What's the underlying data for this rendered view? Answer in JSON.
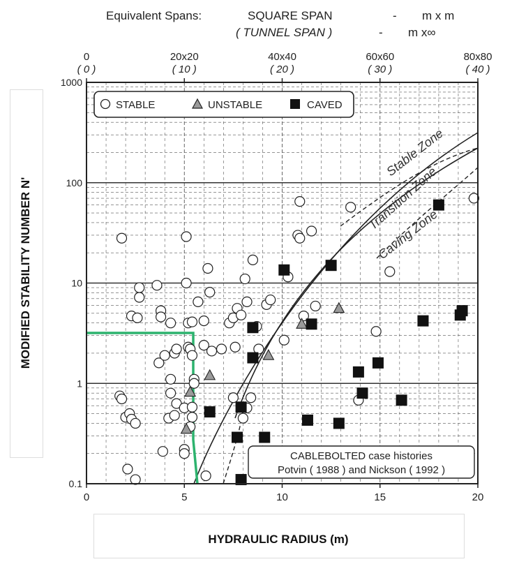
{
  "chart_data": {
    "type": "scatter",
    "title": "",
    "xlabel": "HYDRAULIC RADIUS (m)",
    "ylabel": "MODIFIED STABILITY NUMBER N'",
    "xlim": [
      0,
      20
    ],
    "ylim": [
      0.1,
      1000
    ],
    "yscale": "log",
    "x_ticks": [
      "0",
      "5",
      "10",
      "15",
      "20"
    ],
    "y_ticks": [
      "0.1",
      "1",
      "10",
      "100",
      "1000"
    ],
    "grid": true,
    "legend_position": "top-left",
    "top_axis": {
      "title_prefix": "Equivalent Spans:",
      "title_square": "SQUARE SPAN",
      "title_square_unit": "m x m",
      "title_tunnel": "( TUNNEL SPAN )",
      "title_tunnel_unit": "m x∞",
      "dash": "-",
      "ticks": [
        {
          "x": 0,
          "square": "0",
          "tunnel": "( 0 )"
        },
        {
          "x": 5,
          "square": "20x20",
          "tunnel": "( 10 )"
        },
        {
          "x": 10,
          "square": "40x40",
          "tunnel": "( 20 )"
        },
        {
          "x": 15,
          "square": "60x60",
          "tunnel": "( 30 )"
        },
        {
          "x": 20,
          "square": "80x80",
          "tunnel": "( 40 )"
        }
      ]
    },
    "legend": [
      {
        "name": "STABLE",
        "marker": "circle"
      },
      {
        "name": "UNSTABLE",
        "marker": "triangle"
      },
      {
        "name": "CAVED",
        "marker": "square"
      }
    ],
    "zone_labels": [
      "Stable Zone",
      "Transition Zone",
      "Caving Zone"
    ],
    "annotation": {
      "line1": "CABLEBOLTED case histories",
      "line2": "Potvin ( 1988 ) and Nickson ( 1992 )"
    },
    "series": [
      {
        "name": "STABLE",
        "points": [
          [
            1.7,
            0.75
          ],
          [
            1.8,
            0.7
          ],
          [
            2.0,
            0.46
          ],
          [
            2.2,
            0.5
          ],
          [
            2.3,
            0.44
          ],
          [
            2.5,
            0.4
          ],
          [
            2.1,
            0.14
          ],
          [
            2.5,
            0.11
          ],
          [
            1.8,
            28
          ],
          [
            2.3,
            4.7
          ],
          [
            2.6,
            4.5
          ],
          [
            2.7,
            7.2
          ],
          [
            2.7,
            9.0
          ],
          [
            3.6,
            9.5
          ],
          [
            3.8,
            5.3
          ],
          [
            3.8,
            4.6
          ],
          [
            4.3,
            4.0
          ],
          [
            3.7,
            1.6
          ],
          [
            4.0,
            1.9
          ],
          [
            4.5,
            2.0
          ],
          [
            4.6,
            2.2
          ],
          [
            4.3,
            1.1
          ],
          [
            4.3,
            0.8
          ],
          [
            4.2,
            0.45
          ],
          [
            4.5,
            0.48
          ],
          [
            3.9,
            0.21
          ],
          [
            4.6,
            0.63
          ],
          [
            5.0,
            0.57
          ],
          [
            5.0,
            0.22
          ],
          [
            5.0,
            0.2
          ],
          [
            5.1,
            10
          ],
          [
            5.1,
            29
          ],
          [
            5.2,
            4.0
          ],
          [
            5.4,
            4.1
          ],
          [
            5.5,
            1.1
          ],
          [
            5.5,
            1.0
          ],
          [
            5.4,
            0.58
          ],
          [
            5.4,
            0.46
          ],
          [
            5.3,
            0.37
          ],
          [
            5.7,
            6.5
          ],
          [
            5.2,
            2.3
          ],
          [
            5.3,
            2.2
          ],
          [
            5.4,
            1.9
          ],
          [
            6.0,
            4.2
          ],
          [
            6.2,
            14
          ],
          [
            6.3,
            8.1
          ],
          [
            6.0,
            2.4
          ],
          [
            6.4,
            2.1
          ],
          [
            6.1,
            0.12
          ],
          [
            6.9,
            2.2
          ],
          [
            7.3,
            4.0
          ],
          [
            7.5,
            4.5
          ],
          [
            7.6,
            2.3
          ],
          [
            7.5,
            0.72
          ],
          [
            7.7,
            5.6
          ],
          [
            7.9,
            4.8
          ],
          [
            8.1,
            11
          ],
          [
            8.2,
            6.5
          ],
          [
            8.5,
            17
          ],
          [
            8.7,
            3.7
          ],
          [
            8.8,
            2.2
          ],
          [
            8.4,
            0.72
          ],
          [
            8.2,
            0.57
          ],
          [
            8.0,
            0.45
          ],
          [
            9.2,
            6.1
          ],
          [
            9.4,
            6.8
          ],
          [
            10.1,
            2.7
          ],
          [
            10.3,
            11.5
          ],
          [
            10.8,
            30
          ],
          [
            10.9,
            28
          ],
          [
            10.9,
            65
          ],
          [
            11.1,
            4.7
          ],
          [
            11.5,
            33
          ],
          [
            11.7,
            5.9
          ],
          [
            13.5,
            57
          ],
          [
            13.9,
            0.68
          ],
          [
            14.8,
            3.3
          ],
          [
            15.5,
            13
          ],
          [
            19.8,
            70
          ]
        ]
      },
      {
        "name": "UNSTABLE",
        "points": [
          [
            5.1,
            0.35
          ],
          [
            5.3,
            0.82
          ],
          [
            6.3,
            1.2
          ],
          [
            9.3,
            1.9
          ],
          [
            11.0,
            3.9
          ],
          [
            12.9,
            5.6
          ]
        ]
      },
      {
        "name": "CAVED",
        "points": [
          [
            6.3,
            0.52
          ],
          [
            7.7,
            0.29
          ],
          [
            7.9,
            0.11
          ],
          [
            7.9,
            0.58
          ],
          [
            8.5,
            3.6
          ],
          [
            8.5,
            1.8
          ],
          [
            9.1,
            0.29
          ],
          [
            10.1,
            13.5
          ],
          [
            11.3,
            0.43
          ],
          [
            11.5,
            3.9
          ],
          [
            12.5,
            15
          ],
          [
            12.9,
            0.4
          ],
          [
            13.9,
            1.3
          ],
          [
            14.1,
            0.8
          ],
          [
            14.9,
            1.6
          ],
          [
            16.1,
            0.68
          ],
          [
            17.2,
            4.2
          ],
          [
            18.0,
            60
          ],
          [
            19.1,
            4.8
          ],
          [
            19.2,
            5.3
          ]
        ]
      }
    ]
  },
  "colors": {
    "boundary": "#2db36e",
    "ink": "#222222",
    "grid": "#555555",
    "unstable_fill": "#9a9a9a"
  }
}
